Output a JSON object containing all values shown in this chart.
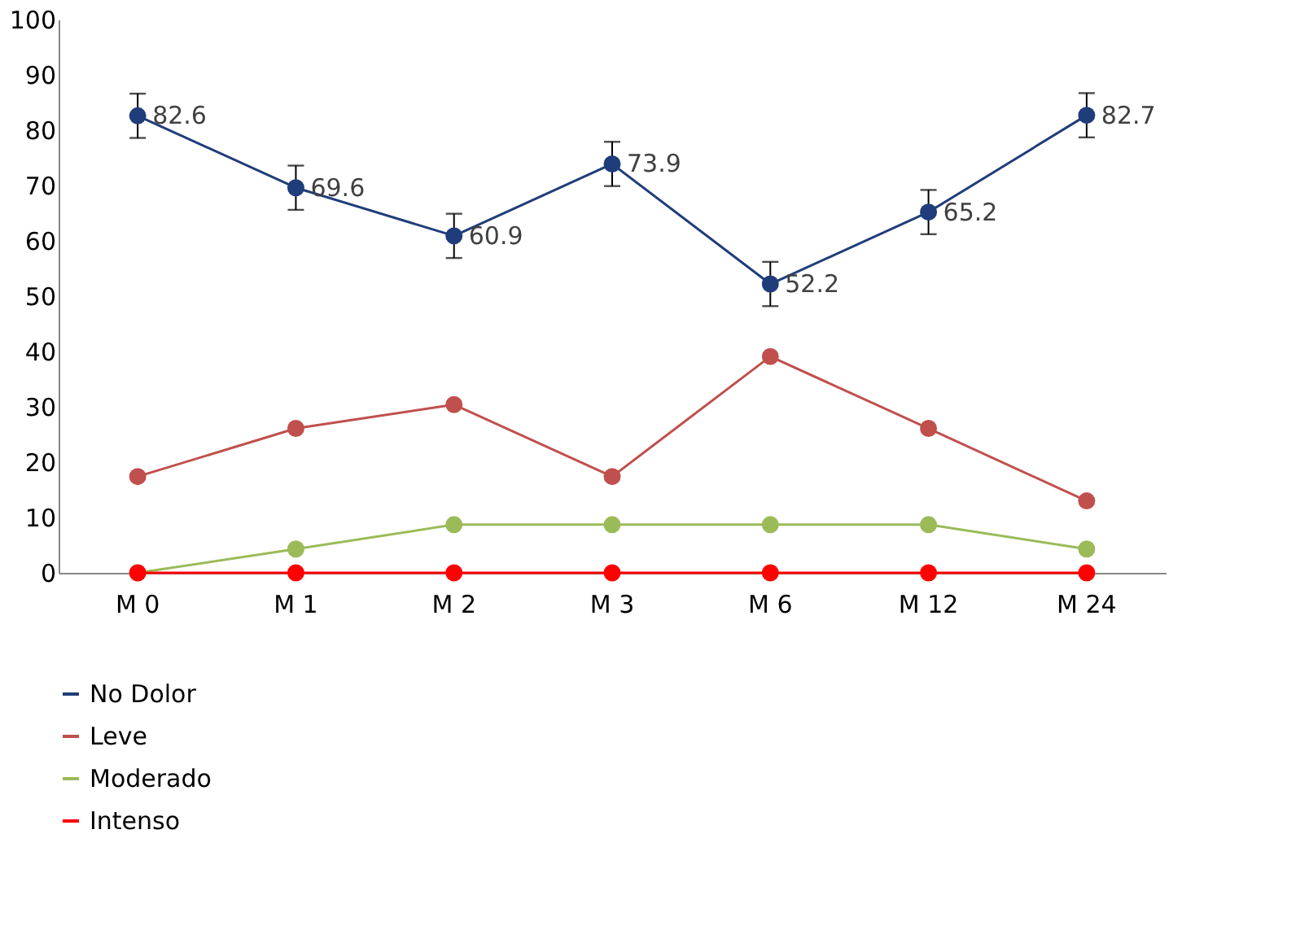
{
  "chart_data": {
    "type": "line",
    "categories": [
      "M 0",
      "M 1",
      "M 2",
      "M 3",
      "M 6",
      "M 12",
      "M 24"
    ],
    "series": [
      {
        "name": "No Dolor",
        "color": "#1f3d7a",
        "values": [
          82.6,
          69.6,
          60.9,
          73.9,
          52.2,
          65.2,
          82.7
        ],
        "errors": [
          4,
          4,
          4,
          4,
          4,
          4,
          4
        ],
        "value_labels": [
          "82.6",
          "69.6",
          "60.9",
          "73.9",
          "52.2",
          "65.2",
          "82.7"
        ]
      },
      {
        "name": "Leve",
        "color": "#c0504d",
        "values": [
          17.4,
          26.1,
          30.4,
          17.4,
          39.1,
          26.1,
          13.0
        ]
      },
      {
        "name": "Moderado",
        "color": "#9bbb59",
        "values": [
          0,
          4.3,
          8.7,
          8.7,
          8.7,
          8.7,
          4.3
        ]
      },
      {
        "name": "Intenso",
        "color": "#ff0000",
        "values": [
          0,
          0,
          0,
          0,
          0,
          0,
          0
        ]
      }
    ],
    "ylim": [
      0,
      100
    ],
    "yticks": [
      0,
      10,
      20,
      30,
      40,
      50,
      60,
      70,
      80,
      90,
      100
    ],
    "grid": false,
    "legend": "bottom",
    "marker": "circle",
    "line_style": "solid"
  }
}
